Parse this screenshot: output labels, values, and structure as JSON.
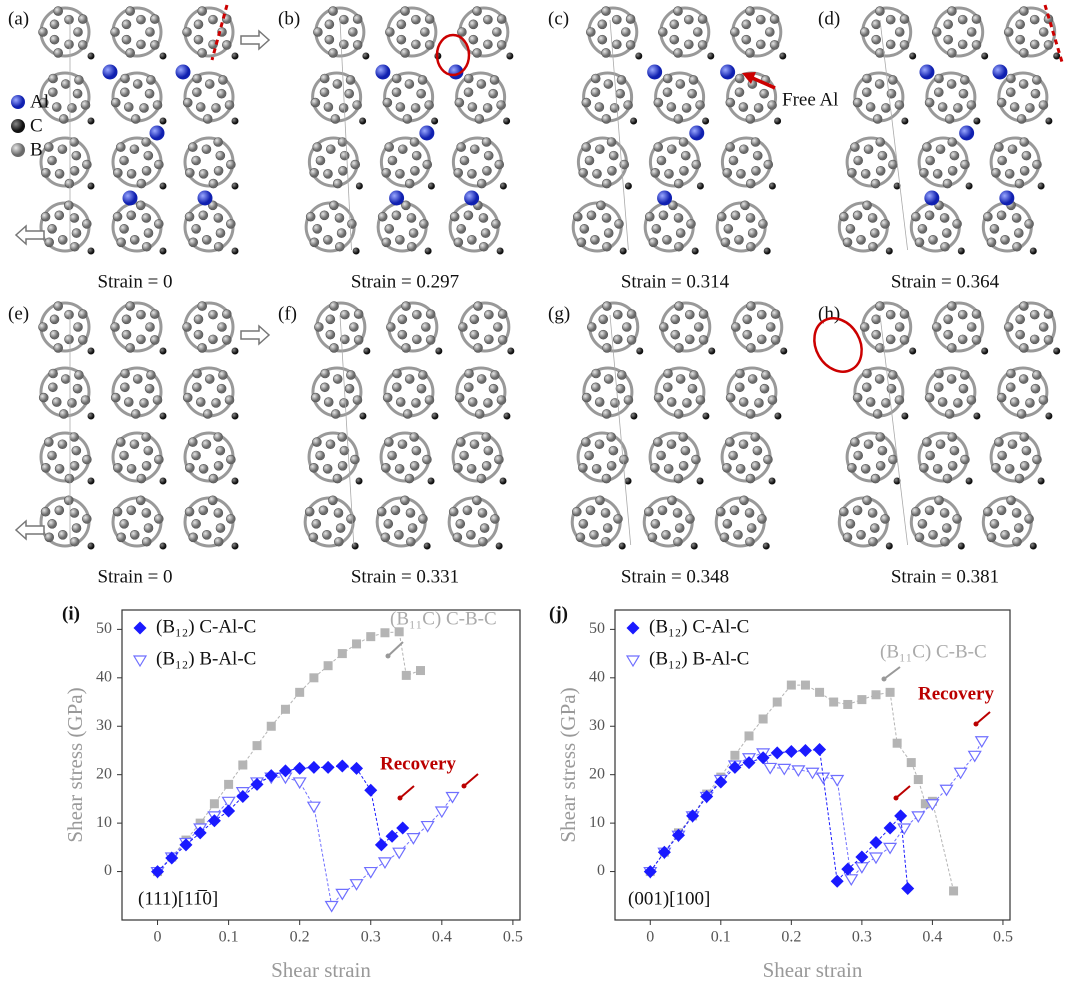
{
  "panels": [
    {
      "label": "(a)",
      "strain": "Strain = 0"
    },
    {
      "label": "(b)",
      "strain": "Strain = 0.297"
    },
    {
      "label": "(c)",
      "strain": "Strain = 0.314"
    },
    {
      "label": "(d)",
      "strain": "Strain = 0.364"
    },
    {
      "label": "(e)",
      "strain": "Strain = 0"
    },
    {
      "label": "(f)",
      "strain": "Strain = 0.331"
    },
    {
      "label": "(g)",
      "strain": "Strain = 0.348"
    },
    {
      "label": "(h)",
      "strain": "Strain = 0.381"
    }
  ],
  "atom_legend": [
    "Al",
    "C",
    "B"
  ],
  "free_al": "Free Al",
  "chart_data": [
    {
      "type": "scatter-line",
      "label": "(i)",
      "x_label": "Shear strain",
      "y_label": "Shear stress (GPa)",
      "xlim": [
        -0.05,
        0.51
      ],
      "ylim": [
        -10,
        54
      ],
      "xticks": [
        0,
        0.1,
        0.2,
        0.3,
        0.4,
        0.5
      ],
      "yticks": [
        0,
        10,
        20,
        30,
        40,
        50
      ],
      "legend": "upper left",
      "annotations": [
        "(B₁₁C) C-B-C",
        "Recovery",
        "(111)[11̅0]"
      ],
      "series": [
        {
          "name": "(B₁₂) C-Al-C",
          "color": "#1a1aff",
          "marker": "diamond",
          "x": [
            0,
            0.02,
            0.04,
            0.06,
            0.08,
            0.1,
            0.12,
            0.14,
            0.16,
            0.18,
            0.2,
            0.22,
            0.24,
            0.26,
            0.28,
            0.3,
            0.315,
            0.33,
            0.345
          ],
          "values": [
            0,
            2.8,
            5.5,
            8,
            10.5,
            12.5,
            15.5,
            18,
            19.8,
            20.8,
            21.3,
            21.5,
            21.5,
            21.8,
            21.3,
            16.8,
            5.5,
            7.3,
            9
          ]
        },
        {
          "name": "(B₁₂) B-Al-C",
          "color": "#6f6fff",
          "marker": "triangle-open",
          "x": [
            0,
            0.02,
            0.04,
            0.06,
            0.08,
            0.1,
            0.12,
            0.14,
            0.16,
            0.18,
            0.2,
            0.22,
            0.245,
            0.26,
            0.28,
            0.3,
            0.32,
            0.34,
            0.36,
            0.38,
            0.4,
            0.415
          ],
          "values": [
            0,
            3,
            6,
            9,
            11.5,
            14.5,
            16.5,
            18.5,
            19.5,
            19.5,
            18.5,
            13.5,
            -7,
            -4.5,
            -2.5,
            0,
            2,
            4,
            7,
            9.5,
            12.5,
            15.5
          ]
        },
        {
          "name": null,
          "color": "#b4b4b4",
          "marker": "square",
          "x": [
            0,
            0.02,
            0.04,
            0.06,
            0.08,
            0.1,
            0.12,
            0.14,
            0.16,
            0.18,
            0.2,
            0.22,
            0.24,
            0.26,
            0.28,
            0.3,
            0.32,
            0.34,
            0.35,
            0.37
          ],
          "values": [
            0,
            3,
            6.5,
            10,
            14,
            18,
            22,
            26,
            30,
            33.5,
            37,
            40,
            42.5,
            45,
            47,
            48.5,
            49.3,
            49.5,
            40.5,
            41.5
          ]
        }
      ]
    },
    {
      "type": "scatter-line",
      "label": "(j)",
      "x_label": "Shear strain",
      "y_label": "Shear stress (GPa)",
      "xlim": [
        -0.05,
        0.51
      ],
      "ylim": [
        -10,
        54
      ],
      "xticks": [
        0,
        0.1,
        0.2,
        0.3,
        0.4,
        0.5
      ],
      "yticks": [
        0,
        10,
        20,
        30,
        40,
        50
      ],
      "legend": "upper left",
      "annotations": [
        "(B₁₁C) C-B-C",
        "Recovery",
        "(001)[100]"
      ],
      "series": [
        {
          "name": "(B₁₂) C-Al-C",
          "color": "#1a1aff",
          "marker": "diamond",
          "x": [
            0,
            0.02,
            0.04,
            0.06,
            0.08,
            0.1,
            0.12,
            0.14,
            0.16,
            0.18,
            0.2,
            0.22,
            0.24,
            0.265,
            0.28,
            0.3,
            0.32,
            0.34,
            0.355,
            0.365
          ],
          "values": [
            0,
            4,
            7.5,
            11.5,
            15.5,
            18.5,
            21.5,
            22.5,
            23.5,
            24.5,
            24.8,
            25,
            25.2,
            -2,
            0.5,
            3,
            6,
            9,
            11.5,
            -3.5
          ]
        },
        {
          "name": "(B₁₂) B-Al-C",
          "color": "#6f6fff",
          "marker": "triangle-open",
          "x": [
            0,
            0.02,
            0.04,
            0.06,
            0.08,
            0.1,
            0.12,
            0.14,
            0.16,
            0.17,
            0.19,
            0.21,
            0.23,
            0.245,
            0.265,
            0.285,
            0.3,
            0.32,
            0.34,
            0.36,
            0.38,
            0.4,
            0.42,
            0.44,
            0.46,
            0.47
          ],
          "values": [
            0,
            4,
            7.5,
            11.5,
            15.5,
            19,
            22,
            23.5,
            24.5,
            21.5,
            21.3,
            21,
            20.5,
            19.5,
            19,
            -1.5,
            1,
            3,
            5,
            9,
            11.5,
            14,
            17,
            20.5,
            24,
            27
          ]
        },
        {
          "name": null,
          "color": "#b4b4b4",
          "marker": "square",
          "x": [
            0,
            0.02,
            0.04,
            0.06,
            0.08,
            0.1,
            0.12,
            0.14,
            0.16,
            0.18,
            0.2,
            0.22,
            0.24,
            0.26,
            0.28,
            0.3,
            0.32,
            0.34,
            0.35,
            0.37,
            0.38,
            0.39,
            0.4,
            0.43
          ],
          "values": [
            0,
            4,
            8,
            11.5,
            16,
            19.5,
            24,
            28,
            31.5,
            35,
            38.5,
            38.5,
            37,
            35,
            34.5,
            35.5,
            36.5,
            37,
            26.5,
            22.5,
            19,
            14,
            14.5,
            -4
          ]
        }
      ]
    }
  ]
}
